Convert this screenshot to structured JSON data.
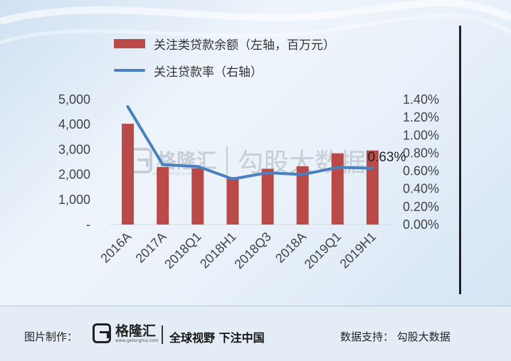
{
  "chart_data": {
    "type": "bar",
    "categories": [
      "2016A",
      "2017A",
      "2018Q1",
      "2018H1",
      "2018Q3",
      "2018A",
      "2019Q1",
      "2019H1"
    ],
    "series": [
      {
        "name": "关注类贷款余额（左轴，百万元）",
        "type": "bar",
        "axis": "left",
        "color": "#b94a48",
        "values": [
          4030,
          2300,
          2250,
          1900,
          2230,
          2330,
          2850,
          2960
        ]
      },
      {
        "name": "关注贷款率（右轴）",
        "type": "line",
        "axis": "right",
        "color": "#4a7fc0",
        "values": [
          1.32,
          0.67,
          0.65,
          0.51,
          0.58,
          0.56,
          0.64,
          0.63
        ]
      }
    ],
    "left_axis": {
      "min": 0,
      "max": 5000,
      "ticks": [
        "-",
        "1,000",
        "2,000",
        "3,000",
        "4,000",
        "5,000"
      ]
    },
    "right_axis": {
      "min": 0,
      "max": 1.4,
      "ticks": [
        "0.00%",
        "0.20%",
        "0.40%",
        "0.60%",
        "0.80%",
        "1.00%",
        "1.20%",
        "1.40%"
      ]
    },
    "annotation": {
      "text": "0.63%",
      "index": 7
    },
    "legend_position": "top-left",
    "grid": false
  },
  "footer": {
    "credit_label": "图片制作：",
    "logo_text": "格隆汇",
    "logo_sub": "www.gelonghui.com",
    "slogan": "全球视野 下注中国",
    "data_support": "数据支持：  勾股大数据"
  },
  "watermark": {
    "logo_text": "格隆汇",
    "logo_sub": "www.gelonghui.com",
    "text": "勾股大数据"
  }
}
